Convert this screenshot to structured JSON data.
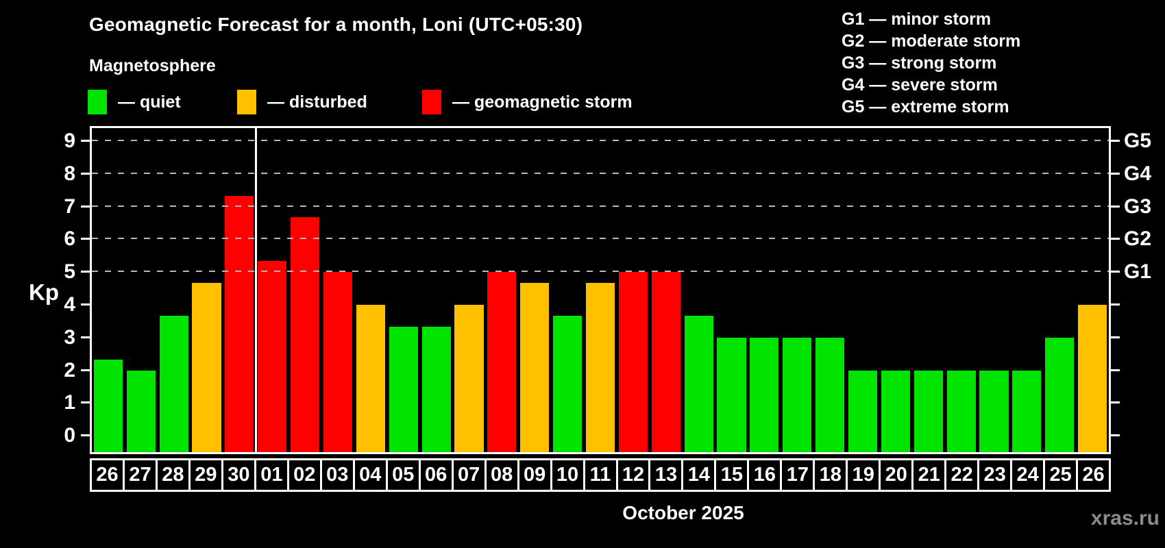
{
  "title": "Geomagnetic Forecast for a month, Loni (UTC+05:30)",
  "subtitle": "Magnetosphere",
  "legend": {
    "items": [
      {
        "key": "quiet",
        "label": "— quiet"
      },
      {
        "key": "disturbed",
        "label": "— disturbed"
      },
      {
        "key": "storm",
        "label": "— geomagnetic storm"
      }
    ]
  },
  "g_legend": [
    "G1 — minor storm",
    "G2 — moderate storm",
    "G3 — strong storm",
    "G4 — severe storm",
    "G5 — extreme storm"
  ],
  "colors": {
    "quiet": "#00e400",
    "disturbed": "#ffc000",
    "storm": "#ff0000",
    "grid": "#b9b9b9",
    "axis": "#ffffff",
    "background": "#000000",
    "watermark": "#8b8b8b"
  },
  "chart_data": {
    "type": "bar",
    "title": "Geomagnetic Forecast for a month, Loni (UTC+05:30)",
    "ylabel": "Kp",
    "xlabel": "October 2025",
    "ylim": [
      -0.5,
      9.4
    ],
    "yticks": [
      0,
      1,
      2,
      3,
      4,
      5,
      6,
      7,
      8,
      9
    ],
    "gridlines_at": [
      5,
      6,
      7,
      8,
      9
    ],
    "grid": true,
    "legend_position": "top",
    "g_levels": [
      {
        "label": "G1",
        "kp": 5
      },
      {
        "label": "G2",
        "kp": 6
      },
      {
        "label": "G3",
        "kp": 7
      },
      {
        "label": "G4",
        "kp": 8
      },
      {
        "label": "G5",
        "kp": 9
      }
    ],
    "month_separator_after_index": 4,
    "categories": [
      "26",
      "27",
      "28",
      "29",
      "30",
      "01",
      "02",
      "03",
      "04",
      "05",
      "06",
      "07",
      "08",
      "09",
      "10",
      "11",
      "12",
      "13",
      "14",
      "15",
      "16",
      "17",
      "18",
      "19",
      "20",
      "21",
      "22",
      "23",
      "24",
      "25",
      "26"
    ],
    "values": [
      2.33,
      2.0,
      3.67,
      4.67,
      7.33,
      5.33,
      6.67,
      5.0,
      4.0,
      3.33,
      3.33,
      4.0,
      5.0,
      4.67,
      3.67,
      4.67,
      5.0,
      5.0,
      3.67,
      3.0,
      3.0,
      3.0,
      3.0,
      2.0,
      2.0,
      2.0,
      2.0,
      2.0,
      2.0,
      3.0,
      4.0
    ],
    "statuses": [
      "quiet",
      "quiet",
      "quiet",
      "disturbed",
      "storm",
      "storm",
      "storm",
      "storm",
      "disturbed",
      "quiet",
      "quiet",
      "disturbed",
      "storm",
      "disturbed",
      "quiet",
      "disturbed",
      "storm",
      "storm",
      "quiet",
      "quiet",
      "quiet",
      "quiet",
      "quiet",
      "quiet",
      "quiet",
      "quiet",
      "quiet",
      "quiet",
      "quiet",
      "quiet",
      "disturbed"
    ]
  },
  "footer": {
    "xaxis_title": "October 2025",
    "watermark": "xras.ru"
  }
}
